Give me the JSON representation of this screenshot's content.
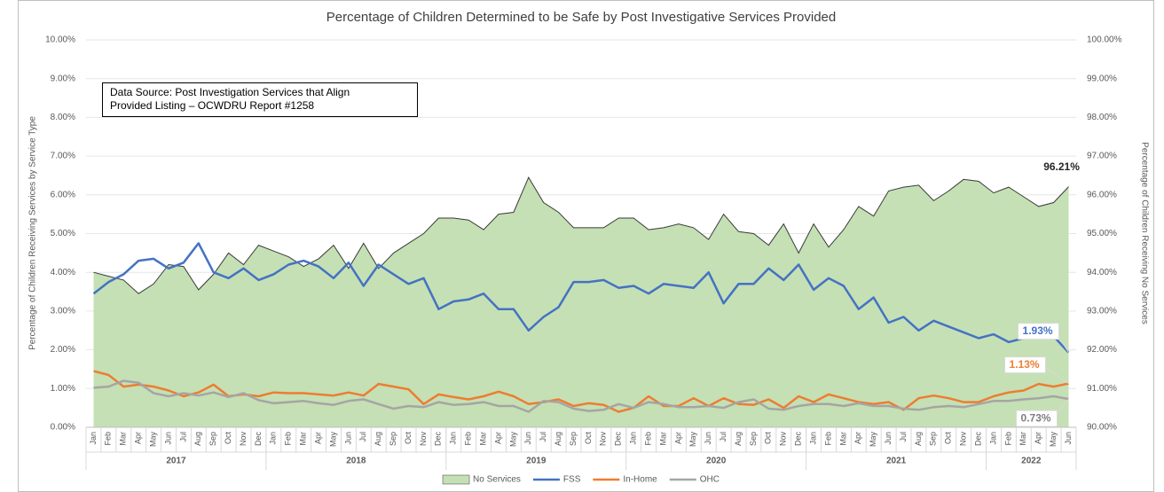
{
  "chart_data": {
    "type": "line",
    "title": "Percentage of Children Determined to be Safe by Post Investigative Services Provided",
    "annotation": [
      "Data Source: Post Investigation Services that Align",
      "Provided Listing – OCWDRU Report #1258"
    ],
    "ylabel": "Percentage of Children Receiving Services by Service Type",
    "y2label": "Percentage of Children Receiving No Services",
    "categories": [
      "Jan",
      "Feb",
      "Mar",
      "Apr",
      "May",
      "Jun",
      "Jul",
      "Aug",
      "Sep",
      "Oct",
      "Nov",
      "Dec",
      "Jan",
      "Feb",
      "Mar",
      "Apr",
      "May",
      "Jun",
      "Jul",
      "Aug",
      "Sep",
      "Oct",
      "Nov",
      "Dec",
      "Jan",
      "Feb",
      "Mar",
      "Apr",
      "May",
      "Jun",
      "Jul",
      "Aug",
      "Sep",
      "Oct",
      "Nov",
      "Dec",
      "Jan",
      "Feb",
      "Mar",
      "Apr",
      "May",
      "Jun",
      "Jul",
      "Aug",
      "Sep",
      "Oct",
      "Nov",
      "Dec",
      "Jan",
      "Feb",
      "Mar",
      "Apr",
      "May",
      "Jun",
      "Jul",
      "Aug",
      "Sep",
      "Oct",
      "Nov",
      "Dec",
      "Jan",
      "Feb",
      "Mar",
      "Apr",
      "May",
      "Jun"
    ],
    "years": [
      "2017",
      "2018",
      "2019",
      "2020",
      "2021",
      "2022"
    ],
    "ylim": [
      0,
      10
    ],
    "yticks": [
      {
        "value": 0,
        "label": "0.00%"
      },
      {
        "value": 1,
        "label": "1.00%"
      },
      {
        "value": 2,
        "label": "2.00%"
      },
      {
        "value": 3,
        "label": "3.00%"
      },
      {
        "value": 4,
        "label": "4.00%"
      },
      {
        "value": 5,
        "label": "5.00%"
      },
      {
        "value": 6,
        "label": "6.00%"
      },
      {
        "value": 7,
        "label": "7.00%"
      },
      {
        "value": 8,
        "label": "8.00%"
      },
      {
        "value": 9,
        "label": "9.00%"
      },
      {
        "value": 10,
        "label": "10.00%"
      }
    ],
    "y2lim": [
      90,
      100
    ],
    "y2ticks": [
      {
        "value": 90,
        "label": "90.00%"
      },
      {
        "value": 91,
        "label": "91.00%"
      },
      {
        "value": 92,
        "label": "92.00%"
      },
      {
        "value": 93,
        "label": "93.00%"
      },
      {
        "value": 94,
        "label": "94.00%"
      },
      {
        "value": 95,
        "label": "95.00%"
      },
      {
        "value": 96,
        "label": "96.00%"
      },
      {
        "value": 97,
        "label": "97.00%"
      },
      {
        "value": 98,
        "label": "98.00%"
      },
      {
        "value": 99,
        "label": "99.00%"
      },
      {
        "value": 100,
        "label": "100.00%"
      }
    ],
    "grid": true,
    "legend": "bottom",
    "series": [
      {
        "name": "No Services",
        "type": "area",
        "axis": "y2",
        "color": "#c5e0b4",
        "values": [
          94.0,
          93.9,
          93.8,
          93.45,
          93.7,
          94.2,
          94.15,
          93.55,
          93.95,
          94.5,
          94.2,
          94.7,
          94.55,
          94.4,
          94.15,
          94.35,
          94.7,
          94.1,
          94.75,
          94.1,
          94.5,
          94.75,
          95.0,
          95.4,
          95.4,
          95.35,
          95.1,
          95.5,
          95.55,
          96.45,
          95.8,
          95.55,
          95.15,
          95.15,
          95.15,
          95.4,
          95.4,
          95.1,
          95.15,
          95.25,
          95.15,
          94.85,
          95.5,
          95.05,
          95.0,
          94.7,
          95.25,
          94.5,
          95.25,
          94.65,
          95.1,
          95.7,
          95.45,
          96.1,
          96.2,
          96.25,
          95.85,
          96.1,
          96.4,
          96.35,
          96.05,
          96.2,
          95.95,
          95.7,
          95.8,
          96.21
        ],
        "value_labels": [
          null,
          null,
          null,
          null,
          null,
          null,
          null,
          null,
          null,
          null,
          null,
          null,
          null,
          null,
          null,
          null,
          null,
          null,
          null,
          null,
          null,
          null,
          null,
          null,
          null,
          null,
          null,
          null,
          null,
          null,
          null,
          null,
          null,
          null,
          null,
          null,
          null,
          null,
          null,
          null,
          null,
          null,
          null,
          null,
          null,
          null,
          null,
          null,
          null,
          null,
          null,
          null,
          null,
          null,
          null,
          null,
          null,
          null,
          null,
          null,
          null,
          null,
          null,
          null,
          null,
          "96.21%"
        ]
      },
      {
        "name": "FSS",
        "type": "line",
        "color": "#4472c4",
        "values": [
          3.45,
          3.75,
          3.95,
          4.3,
          4.35,
          4.1,
          4.25,
          4.75,
          4.0,
          3.85,
          4.1,
          3.8,
          3.95,
          4.2,
          4.3,
          4.15,
          3.85,
          4.25,
          3.65,
          4.2,
          3.95,
          3.7,
          3.85,
          3.05,
          3.25,
          3.3,
          3.45,
          3.05,
          3.05,
          2.5,
          2.85,
          3.1,
          3.75,
          3.75,
          3.8,
          3.6,
          3.65,
          3.45,
          3.7,
          3.65,
          3.6,
          4.0,
          3.2,
          3.7,
          3.7,
          4.1,
          3.8,
          4.2,
          3.55,
          3.85,
          3.65,
          3.05,
          3.35,
          2.7,
          2.85,
          2.5,
          2.75,
          2.6,
          2.45,
          2.3,
          2.4,
          2.2,
          2.3,
          2.35,
          2.35,
          1.93
        ],
        "value_labels": [
          null,
          null,
          null,
          null,
          null,
          null,
          null,
          null,
          null,
          null,
          null,
          null,
          null,
          null,
          null,
          null,
          null,
          null,
          null,
          null,
          null,
          null,
          null,
          null,
          null,
          null,
          null,
          null,
          null,
          null,
          null,
          null,
          null,
          null,
          null,
          null,
          null,
          null,
          null,
          null,
          null,
          null,
          null,
          null,
          null,
          null,
          null,
          null,
          null,
          null,
          null,
          null,
          null,
          null,
          null,
          null,
          null,
          null,
          null,
          null,
          null,
          null,
          null,
          null,
          null,
          "1.93%"
        ]
      },
      {
        "name": "In-Home",
        "type": "line",
        "color": "#ed7d31",
        "values": [
          1.45,
          1.35,
          1.05,
          1.1,
          1.05,
          0.95,
          0.8,
          0.9,
          1.1,
          0.8,
          0.85,
          0.8,
          0.9,
          0.88,
          0.88,
          0.85,
          0.82,
          0.9,
          0.82,
          1.12,
          1.05,
          0.98,
          0.6,
          0.85,
          0.78,
          0.72,
          0.8,
          0.92,
          0.8,
          0.6,
          0.65,
          0.72,
          0.55,
          0.62,
          0.58,
          0.4,
          0.5,
          0.8,
          0.55,
          0.55,
          0.75,
          0.55,
          0.75,
          0.6,
          0.58,
          0.72,
          0.5,
          0.8,
          0.65,
          0.85,
          0.75,
          0.65,
          0.6,
          0.65,
          0.45,
          0.75,
          0.82,
          0.75,
          0.65,
          0.65,
          0.8,
          0.9,
          0.95,
          1.12,
          1.05,
          1.13
        ],
        "value_labels": [
          null,
          null,
          null,
          null,
          null,
          null,
          null,
          null,
          null,
          null,
          null,
          null,
          null,
          null,
          null,
          null,
          null,
          null,
          null,
          null,
          null,
          null,
          null,
          null,
          null,
          null,
          null,
          null,
          null,
          null,
          null,
          null,
          null,
          null,
          null,
          null,
          null,
          null,
          null,
          null,
          null,
          null,
          null,
          null,
          null,
          null,
          null,
          null,
          null,
          null,
          null,
          null,
          null,
          null,
          null,
          null,
          null,
          null,
          null,
          null,
          null,
          null,
          null,
          null,
          null,
          "1.13%"
        ]
      },
      {
        "name": "OHC",
        "type": "line",
        "color": "#a5a5a5",
        "values": [
          1.02,
          1.05,
          1.2,
          1.15,
          0.88,
          0.8,
          0.88,
          0.82,
          0.9,
          0.78,
          0.88,
          0.7,
          0.62,
          0.65,
          0.68,
          0.62,
          0.58,
          0.68,
          0.72,
          0.6,
          0.48,
          0.55,
          0.52,
          0.65,
          0.58,
          0.6,
          0.65,
          0.55,
          0.55,
          0.4,
          0.68,
          0.65,
          0.48,
          0.42,
          0.45,
          0.6,
          0.5,
          0.65,
          0.6,
          0.52,
          0.52,
          0.55,
          0.5,
          0.65,
          0.72,
          0.48,
          0.45,
          0.55,
          0.6,
          0.6,
          0.55,
          0.62,
          0.55,
          0.55,
          0.48,
          0.45,
          0.52,
          0.55,
          0.52,
          0.6,
          0.68,
          0.68,
          0.72,
          0.75,
          0.8,
          0.73
        ],
        "value_labels": [
          null,
          null,
          null,
          null,
          null,
          null,
          null,
          null,
          null,
          null,
          null,
          null,
          null,
          null,
          null,
          null,
          null,
          null,
          null,
          null,
          null,
          null,
          null,
          null,
          null,
          null,
          null,
          null,
          null,
          null,
          null,
          null,
          null,
          null,
          null,
          null,
          null,
          null,
          null,
          null,
          null,
          null,
          null,
          null,
          null,
          null,
          null,
          null,
          null,
          null,
          null,
          null,
          null,
          null,
          null,
          null,
          null,
          null,
          null,
          null,
          null,
          null,
          null,
          null,
          null,
          "0.73%"
        ]
      }
    ]
  }
}
